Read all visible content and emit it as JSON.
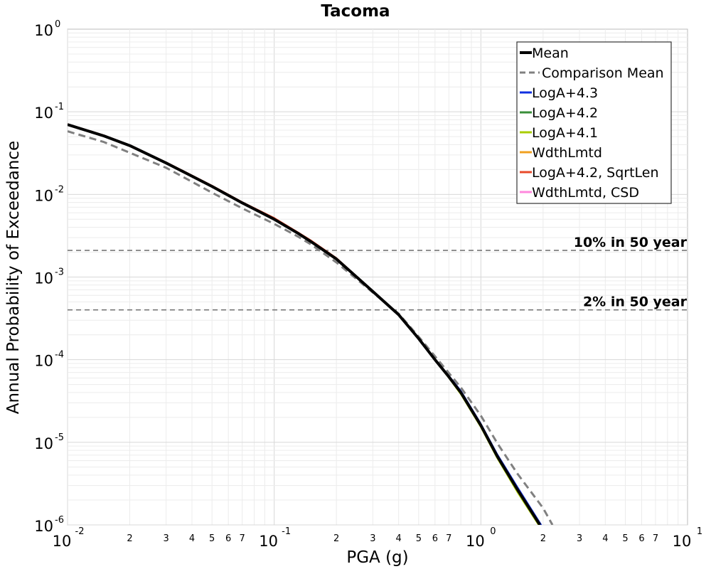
{
  "chart_data": {
    "type": "line",
    "title": "Tacoma",
    "xlabel": "PGA (g)",
    "ylabel": "Annual Probability of Exceedance",
    "xscale": "log",
    "yscale": "log",
    "xlim": [
      0.01,
      10
    ],
    "ylim": [
      1e-06,
      1
    ],
    "grid": true,
    "legend_position": "top-right",
    "x_major_ticks": [
      {
        "value": 0.01,
        "base": "10",
        "exp": "-2"
      },
      {
        "value": 0.1,
        "base": "10",
        "exp": "-1"
      },
      {
        "value": 1,
        "base": "10",
        "exp": "0"
      },
      {
        "value": 10,
        "base": "10",
        "exp": "1"
      }
    ],
    "x_minor_tick_labels": [
      "2",
      "3",
      "4",
      "5",
      "6",
      "7"
    ],
    "y_major_ticks": [
      {
        "value": 1,
        "base": "10",
        "exp": "0"
      },
      {
        "value": 0.1,
        "base": "10",
        "exp": "-1"
      },
      {
        "value": 0.01,
        "base": "10",
        "exp": "-2"
      },
      {
        "value": 0.001,
        "base": "10",
        "exp": "-3"
      },
      {
        "value": 0.0001,
        "base": "10",
        "exp": "-4"
      },
      {
        "value": 1e-05,
        "base": "10",
        "exp": "-5"
      },
      {
        "value": 1e-06,
        "base": "10",
        "exp": "-6"
      }
    ],
    "reference_lines": [
      {
        "label": "10% in 50 year",
        "y": 0.0021,
        "color": "#777777"
      },
      {
        "label": "2% in 50 year",
        "y": 0.0004,
        "color": "#777777"
      }
    ],
    "series": [
      {
        "name": "Mean",
        "color": "#000000",
        "style": "solid",
        "width": 4,
        "x": [
          0.01,
          0.015,
          0.02,
          0.03,
          0.05,
          0.07,
          0.1,
          0.13,
          0.15,
          0.2,
          0.3,
          0.4,
          0.5,
          0.6,
          0.7,
          0.8,
          1.0,
          1.2,
          1.5,
          1.93
        ],
        "y": [
          0.07,
          0.051,
          0.039,
          0.024,
          0.0125,
          0.0079,
          0.005,
          0.0034,
          0.0027,
          0.00165,
          0.00067,
          0.00035,
          0.00018,
          0.0001,
          6.2e-05,
          4e-05,
          1.6e-05,
          6.8e-06,
          2.7e-06,
          1e-06
        ]
      },
      {
        "name": "Comparison Mean",
        "color": "#808080",
        "style": "dashed",
        "width": 3,
        "x": [
          0.01,
          0.015,
          0.02,
          0.03,
          0.05,
          0.07,
          0.1,
          0.13,
          0.15,
          0.2,
          0.3,
          0.4,
          0.5,
          0.6,
          0.7,
          0.8,
          1.0,
          1.2,
          1.5,
          2.0,
          2.22
        ],
        "y": [
          0.058,
          0.043,
          0.032,
          0.021,
          0.0105,
          0.0068,
          0.0044,
          0.0031,
          0.0025,
          0.0015,
          0.00065,
          0.00036,
          0.00019,
          0.00011,
          6.9e-05,
          4.6e-05,
          2.1e-05,
          9.8e-06,
          4.2e-06,
          1.6e-06,
          1e-06
        ]
      },
      {
        "name": "LogA+4.3",
        "color": "#1030e0",
        "style": "solid",
        "width": 2,
        "x": [
          0.01,
          0.015,
          0.02,
          0.03,
          0.05,
          0.07,
          0.1,
          0.13,
          0.15,
          0.2,
          0.3,
          0.4,
          0.5,
          0.6,
          0.7,
          0.8,
          1.0,
          1.2,
          1.5,
          1.96
        ],
        "y": [
          0.07,
          0.051,
          0.039,
          0.024,
          0.0125,
          0.0079,
          0.005,
          0.0034,
          0.0027,
          0.00165,
          0.00067,
          0.00035,
          0.000182,
          0.000102,
          6.4e-05,
          4.2e-05,
          1.68e-05,
          7.2e-06,
          2.9e-06,
          1e-06
        ]
      },
      {
        "name": "LogA+4.2",
        "color": "#3a8f3a",
        "style": "solid",
        "width": 2,
        "x": [
          0.01,
          0.015,
          0.02,
          0.03,
          0.05,
          0.07,
          0.1,
          0.13,
          0.15,
          0.2,
          0.3,
          0.4,
          0.5,
          0.6,
          0.7,
          0.8,
          1.0,
          1.2,
          1.5,
          1.93
        ],
        "y": [
          0.07,
          0.051,
          0.039,
          0.024,
          0.0125,
          0.0079,
          0.005,
          0.0034,
          0.0027,
          0.00165,
          0.00067,
          0.00035,
          0.00018,
          0.0001,
          6.2e-05,
          4e-05,
          1.6e-05,
          6.8e-06,
          2.7e-06,
          1e-06
        ]
      },
      {
        "name": "LogA+4.1",
        "color": "#aacc00",
        "style": "solid",
        "width": 2,
        "x": [
          0.01,
          0.015,
          0.02,
          0.03,
          0.05,
          0.07,
          0.1,
          0.13,
          0.15,
          0.2,
          0.3,
          0.4,
          0.5,
          0.6,
          0.7,
          0.8,
          1.0,
          1.2,
          1.5,
          1.9
        ],
        "y": [
          0.07,
          0.051,
          0.039,
          0.024,
          0.0125,
          0.0079,
          0.005,
          0.0034,
          0.0027,
          0.00165,
          0.00067,
          0.00035,
          0.000178,
          9.8e-05,
          6e-05,
          3.8e-05,
          1.52e-05,
          6.4e-06,
          2.5e-06,
          1e-06
        ]
      },
      {
        "name": "WdthLmtd",
        "color": "#f0a020",
        "style": "solid",
        "width": 2,
        "x": [
          0.01,
          0.015,
          0.02,
          0.03,
          0.05,
          0.07,
          0.1,
          0.13,
          0.15,
          0.2,
          0.3,
          0.4,
          0.5,
          0.6,
          0.7,
          0.8,
          1.0,
          1.2,
          1.5,
          1.93
        ],
        "y": [
          0.07,
          0.051,
          0.039,
          0.024,
          0.0125,
          0.0079,
          0.005,
          0.0034,
          0.0027,
          0.00165,
          0.00067,
          0.00035,
          0.00018,
          0.0001,
          6.2e-05,
          4e-05,
          1.6e-05,
          6.8e-06,
          2.7e-06,
          1e-06
        ]
      },
      {
        "name": "LogA+4.2, SqrtLen",
        "color": "#e84a2a",
        "style": "solid",
        "width": 2,
        "x": [
          0.01,
          0.015,
          0.02,
          0.03,
          0.05,
          0.07,
          0.1,
          0.13,
          0.15,
          0.2,
          0.3,
          0.4,
          0.5,
          0.6,
          0.7,
          0.8,
          1.0,
          1.2,
          1.5,
          1.93
        ],
        "y": [
          0.071,
          0.052,
          0.0395,
          0.0245,
          0.0128,
          0.0081,
          0.0052,
          0.0035,
          0.0028,
          0.0017,
          0.00068,
          0.000352,
          0.00018,
          0.0001,
          6.2e-05,
          4e-05,
          1.6e-05,
          6.8e-06,
          2.7e-06,
          1e-06
        ]
      },
      {
        "name": "WdthLmtd, CSD",
        "color": "#ff88dd",
        "style": "solid",
        "width": 2,
        "x": [
          0.01,
          0.015,
          0.02,
          0.03,
          0.05,
          0.07,
          0.1,
          0.13,
          0.15,
          0.2,
          0.3,
          0.4,
          0.5,
          0.6,
          0.7,
          0.8,
          1.0,
          1.2,
          1.5,
          1.93
        ],
        "y": [
          0.07,
          0.051,
          0.039,
          0.024,
          0.0125,
          0.0079,
          0.005,
          0.0034,
          0.0027,
          0.00165,
          0.00067,
          0.00035,
          0.00018,
          0.0001,
          6.2e-05,
          4e-05,
          1.6e-05,
          6.8e-06,
          2.7e-06,
          1e-06
        ]
      }
    ]
  }
}
